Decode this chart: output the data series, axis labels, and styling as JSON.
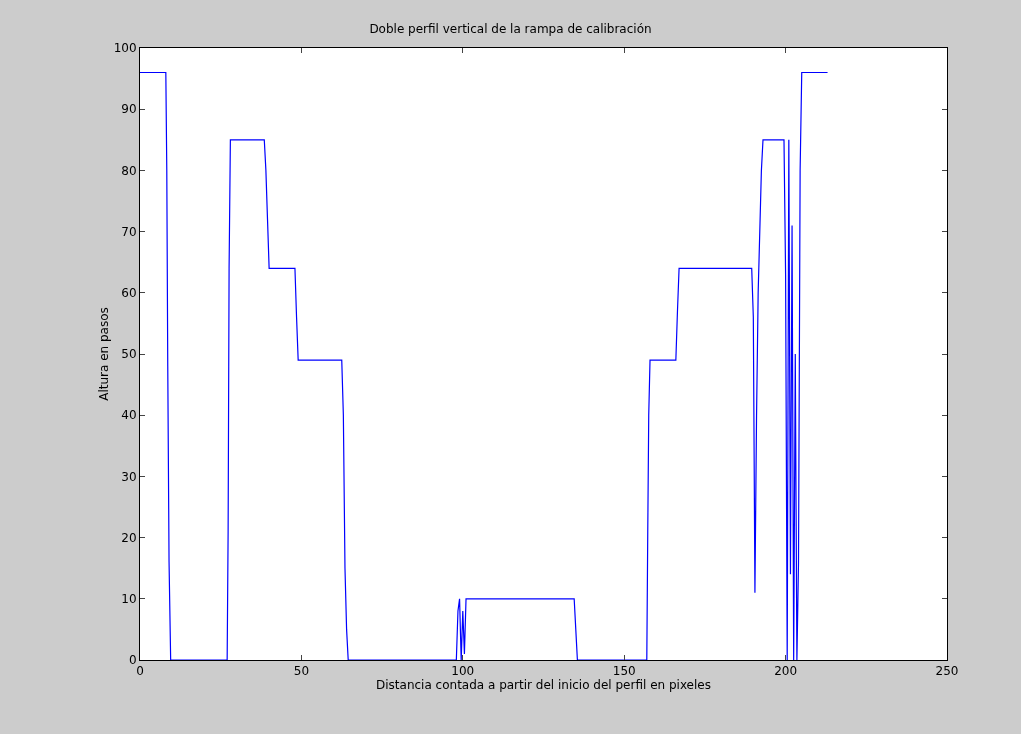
{
  "chart_data": {
    "type": "line",
    "title": "Doble perfil vertical de la rampa de calibración",
    "xlabel": "Distancia contada a partir del inicio del perfil en pixeles",
    "ylabel": "Altura en pasos",
    "x": [
      0,
      8,
      8.3,
      8.6,
      9,
      9.5,
      27,
      27.3,
      27.6,
      28,
      38.5,
      39,
      39.5,
      40,
      48,
      48.5,
      49,
      62.5,
      63,
      63.5,
      64,
      64.5,
      98,
      98.5,
      99,
      99.5,
      100,
      100.5,
      101,
      134.5,
      135,
      135.5,
      157,
      157.3,
      157.6,
      158,
      166,
      166.5,
      167,
      189.5,
      190,
      190.5,
      191,
      191.5,
      192,
      192.5,
      193,
      199.5,
      200,
      200.5,
      201,
      201.5,
      202,
      202.5,
      203,
      203.5,
      204,
      204.5,
      205,
      213
    ],
    "values": [
      96,
      96,
      80,
      48,
      16,
      0,
      0,
      21,
      64,
      85,
      85,
      80,
      72,
      64,
      64,
      56,
      49,
      49,
      40,
      15,
      5,
      0,
      0,
      8,
      10,
      0,
      8,
      1,
      10,
      10,
      5,
      0,
      0,
      21,
      40,
      49,
      49,
      57,
      64,
      64,
      56,
      11,
      40,
      60,
      70,
      80,
      85,
      85,
      63,
      0,
      85,
      14,
      71,
      0,
      50,
      0,
      16,
      80,
      96,
      96
    ],
    "color": "#0000ff",
    "xlim": [
      0,
      250
    ],
    "ylim": [
      0,
      100
    ],
    "xticks": [
      0,
      50,
      100,
      150,
      200,
      250
    ],
    "yticks": [
      0,
      10,
      20,
      30,
      40,
      50,
      60,
      70,
      80,
      90,
      100
    ]
  }
}
